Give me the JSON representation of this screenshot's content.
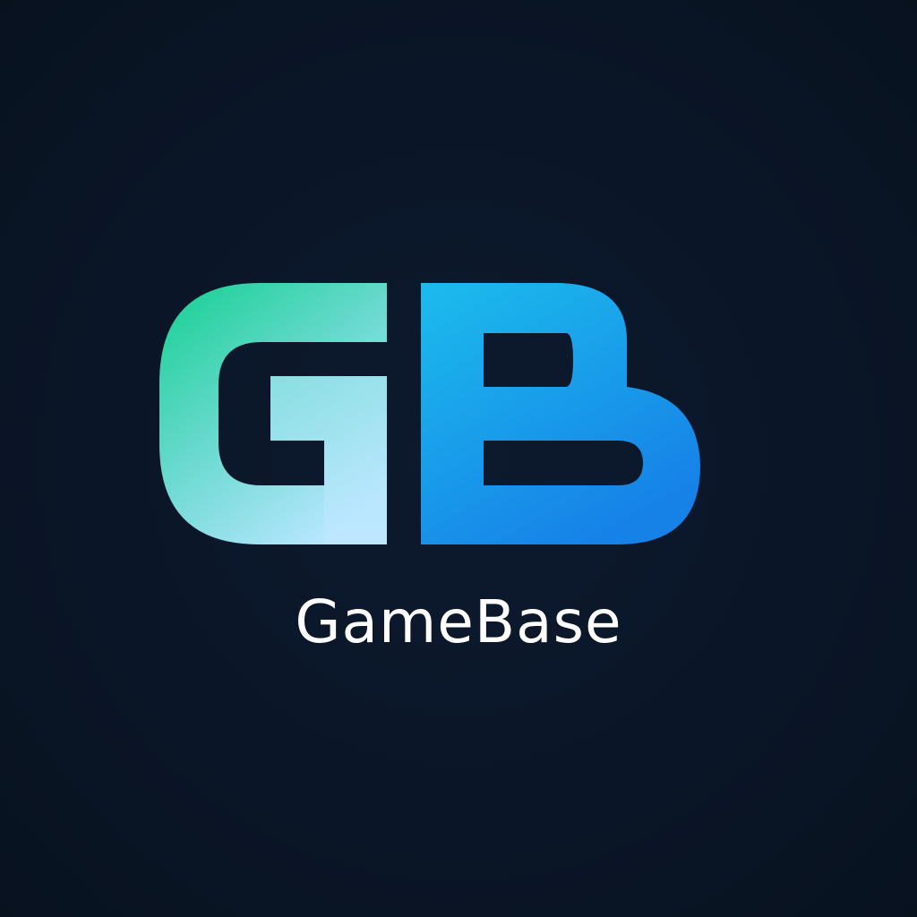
{
  "logo": {
    "monogram": "GB",
    "wordmark": "GameBase",
    "icon": "gb-monogram-icon"
  },
  "colors": {
    "background": "#0b1628",
    "g_top": "#14d08f",
    "g_bottom": "#b7e6ff",
    "b_top": "#19b6ee",
    "b_bottom": "#1a86ea",
    "wordmark": "#ffffff"
  }
}
